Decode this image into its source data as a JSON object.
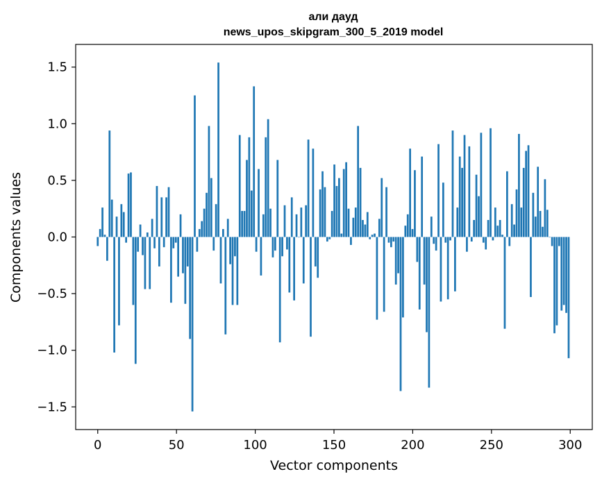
{
  "chart_data": {
    "type": "bar",
    "title_line1": "али дауд",
    "title_line2": "news_upos_skipgram_300_5_2019 model",
    "xlabel": "Vector components",
    "ylabel": "Components values",
    "xlim": [
      -14,
      314
    ],
    "ylim": [
      -1.7,
      1.7
    ],
    "xticks": [
      0,
      50,
      100,
      150,
      200,
      250,
      300
    ],
    "xtick_labels": [
      "0",
      "50",
      "100",
      "150",
      "200",
      "250",
      "300"
    ],
    "yticks": [
      -1.5,
      -1.0,
      -0.5,
      0.0,
      0.5,
      1.0,
      1.5
    ],
    "ytick_labels": [
      "−1.5",
      "−1.0",
      "−0.5",
      "0.0",
      "0.5",
      "1.0",
      "1.5"
    ],
    "bar_color": "#1f77b4",
    "values": [
      -0.08,
      0.07,
      0.26,
      0.02,
      -0.21,
      0.94,
      0.33,
      -1.02,
      0.18,
      -0.78,
      0.29,
      0.22,
      -0.05,
      0.56,
      0.57,
      -0.6,
      -1.12,
      -0.13,
      0.11,
      -0.16,
      -0.46,
      0.04,
      -0.46,
      0.16,
      -0.1,
      0.45,
      -0.26,
      0.35,
      -0.09,
      0.35,
      0.44,
      -0.58,
      -0.1,
      -0.05,
      -0.35,
      0.2,
      -0.32,
      -0.59,
      -0.26,
      -0.9,
      -1.54,
      1.25,
      -0.13,
      0.07,
      0.14,
      0.25,
      0.39,
      0.98,
      0.52,
      -0.12,
      0.29,
      1.54,
      -0.41,
      0.07,
      -0.86,
      0.16,
      -0.24,
      -0.6,
      -0.17,
      -0.6,
      0.9,
      0.23,
      0.23,
      0.68,
      0.88,
      0.41,
      1.33,
      -0.13,
      0.6,
      -0.34,
      0.2,
      0.88,
      1.04,
      0.25,
      -0.18,
      -0.12,
      0.68,
      -0.93,
      -0.17,
      0.28,
      -0.11,
      -0.49,
      0.35,
      -0.56,
      0.2,
      0.0,
      0.26,
      -0.41,
      0.28,
      0.86,
      -0.88,
      0.78,
      -0.26,
      -0.36,
      0.42,
      0.58,
      0.44,
      -0.04,
      -0.02,
      0.23,
      0.64,
      0.45,
      0.52,
      0.03,
      0.6,
      0.66,
      0.25,
      -0.07,
      0.17,
      0.26,
      0.98,
      0.61,
      0.15,
      0.11,
      0.22,
      -0.02,
      0.02,
      0.03,
      -0.73,
      0.16,
      0.52,
      -0.66,
      0.44,
      -0.05,
      -0.09,
      -0.04,
      -0.42,
      -0.32,
      -1.36,
      -0.71,
      0.1,
      0.2,
      0.78,
      0.07,
      0.59,
      -0.22,
      -0.64,
      0.71,
      -0.42,
      -0.84,
      -1.33,
      0.18,
      -0.06,
      -0.12,
      0.82,
      -0.57,
      0.48,
      -0.05,
      -0.55,
      -0.03,
      0.94,
      -0.48,
      0.26,
      0.71,
      0.61,
      0.9,
      -0.13,
      0.8,
      -0.04,
      0.15,
      0.55,
      0.36,
      0.92,
      -0.05,
      -0.11,
      0.15,
      0.96,
      -0.03,
      0.26,
      0.1,
      0.15,
      0.02,
      -0.81,
      0.58,
      -0.08,
      0.29,
      0.11,
      0.42,
      0.91,
      0.26,
      0.61,
      0.76,
      0.81,
      -0.53,
      0.39,
      0.18,
      0.62,
      0.23,
      0.09,
      0.51,
      0.24,
      0.0,
      -0.08,
      -0.85,
      -0.78,
      -0.08,
      -0.65,
      -0.6,
      -0.67,
      -1.07
    ]
  }
}
